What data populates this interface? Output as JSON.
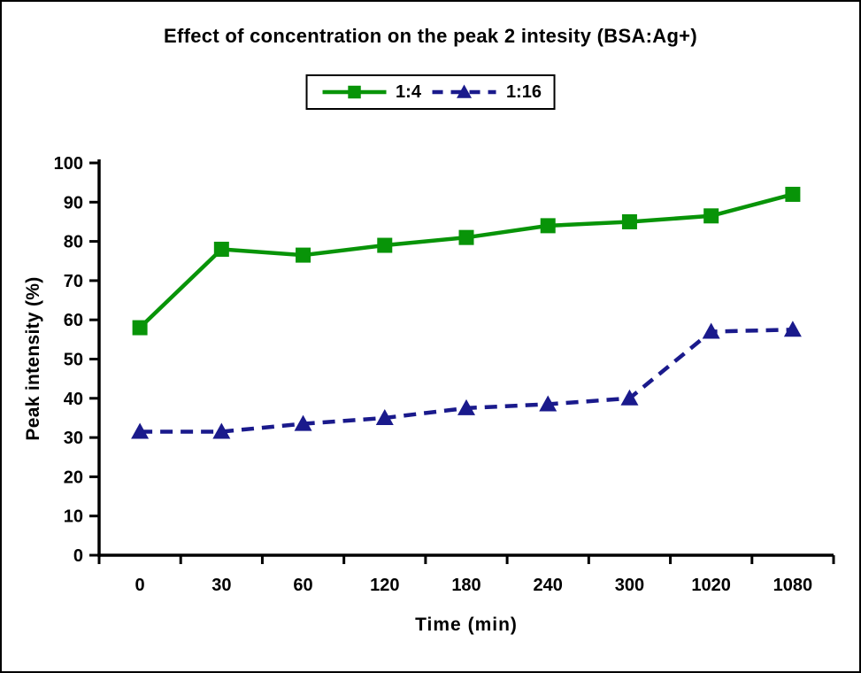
{
  "chart_data": {
    "type": "line",
    "title": "Effect of concentration on the peak 2 intesity (BSA:Ag+)",
    "xlabel": "Time (min)",
    "ylabel": "Peak intensity (%)",
    "categories": [
      "0",
      "30",
      "60",
      "120",
      "180",
      "240",
      "300",
      "1020",
      "1080"
    ],
    "ylim": [
      0,
      100
    ],
    "ytick_step": 10,
    "grid": false,
    "legend_position": "top-center",
    "series": [
      {
        "name": "1:4",
        "color": "#089408",
        "marker": "square",
        "line_style": "solid",
        "values": [
          58,
          78,
          76.5,
          79,
          81,
          84,
          85,
          86.5,
          92
        ]
      },
      {
        "name": "1:16",
        "color": "#1a1a8c",
        "marker": "triangle",
        "line_style": "dashed",
        "values": [
          31.5,
          31.5,
          33.5,
          35,
          37.5,
          38.5,
          40,
          57,
          57.5
        ]
      }
    ]
  }
}
